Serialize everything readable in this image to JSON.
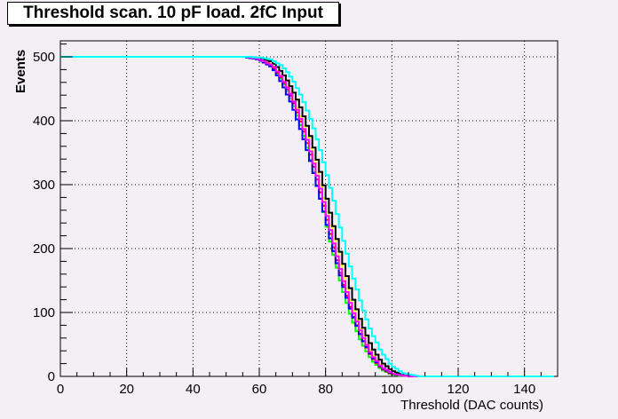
{
  "chart_data": {
    "type": "line",
    "title": "Threshold scan. 10 pF load. 2fC Input",
    "xlabel": "Threshold (DAC counts)",
    "ylabel": "Events",
    "xlim": [
      0,
      150
    ],
    "ylim": [
      0,
      525
    ],
    "xticks": [
      0,
      20,
      40,
      60,
      80,
      100,
      120,
      140
    ],
    "yticks": [
      0,
      100,
      200,
      300,
      400,
      500
    ],
    "grid": true,
    "legend": "none",
    "series": [
      {
        "color": "#ffff00",
        "x": [
          0,
          56,
          60,
          64,
          67,
          70,
          73,
          76,
          79,
          82,
          85,
          88,
          91,
          94,
          97,
          100,
          103,
          106,
          149
        ],
        "y": [
          500,
          500,
          497,
          488,
          468,
          440,
          400,
          348,
          290,
          225,
          165,
          110,
          68,
          35,
          15,
          5,
          1,
          0,
          0
        ]
      },
      {
        "color": "#00ff00",
        "x": [
          0,
          56,
          60,
          64,
          67,
          70,
          73,
          76,
          79,
          82,
          85,
          88,
          91,
          94,
          97,
          100,
          103,
          106,
          149
        ],
        "y": [
          500,
          500,
          496,
          485,
          462,
          430,
          385,
          330,
          268,
          200,
          140,
          90,
          52,
          25,
          10,
          3,
          1,
          0,
          0
        ]
      },
      {
        "color": "#ff0000",
        "x": [
          0,
          56,
          60,
          64,
          67,
          70,
          73,
          76,
          79,
          82,
          85,
          88,
          91,
          94,
          97,
          100,
          103,
          106,
          149
        ],
        "y": [
          500,
          500,
          496,
          486,
          464,
          434,
          392,
          338,
          278,
          212,
          152,
          100,
          60,
          30,
          12,
          4,
          1,
          0,
          0
        ]
      },
      {
        "color": "#0000ff",
        "x": [
          0,
          56,
          60,
          64,
          67,
          70,
          73,
          76,
          79,
          82,
          85,
          88,
          91,
          94,
          97,
          100,
          103,
          106,
          149
        ],
        "y": [
          500,
          500,
          495,
          483,
          458,
          424,
          380,
          328,
          268,
          205,
          148,
          98,
          60,
          31,
          13,
          4,
          1,
          0,
          0
        ]
      },
      {
        "color": "#000000",
        "x": [
          0,
          56,
          60,
          64,
          67,
          70,
          73,
          76,
          79,
          82,
          85,
          88,
          91,
          94,
          97,
          100,
          103,
          106,
          149
        ],
        "y": [
          500,
          500,
          498,
          492,
          475,
          450,
          415,
          368,
          310,
          245,
          185,
          128,
          82,
          46,
          22,
          9,
          3,
          0,
          0
        ]
      },
      {
        "color": "#ff00ff",
        "x": [
          0,
          56,
          60,
          64,
          67,
          70,
          73,
          76,
          79,
          82,
          85,
          88,
          91,
          94,
          97,
          100,
          103,
          106,
          149
        ],
        "y": [
          500,
          500,
          496,
          487,
          466,
          437,
          396,
          343,
          284,
          218,
          158,
          106,
          65,
          33,
          14,
          5,
          1,
          0,
          0
        ]
      },
      {
        "color": "#00ffff",
        "x": [
          0,
          56,
          60,
          64,
          67,
          70,
          73,
          76,
          79,
          82,
          85,
          88,
          91,
          94,
          97,
          100,
          103,
          106,
          109,
          149
        ],
        "y": [
          500,
          500,
          499,
          495,
          485,
          466,
          436,
          396,
          345,
          285,
          222,
          162,
          110,
          68,
          37,
          17,
          6,
          2,
          0,
          0
        ]
      }
    ]
  }
}
